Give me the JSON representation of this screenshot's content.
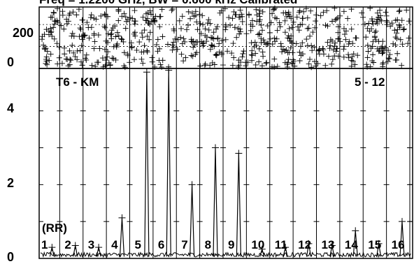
{
  "chart_data": [
    {
      "type": "scatter",
      "title": "Freq = 1.2200 GHz, BW = 0.600 kHz   Calibrated",
      "ytick_labels": [
        "200",
        "0"
      ],
      "ylim": [
        0,
        280
      ],
      "description_of_points": "dense field of '+' markers spanning the full x range and y range",
      "grid": true
    },
    {
      "type": "line",
      "panel_label": "T6 - KM",
      "range_label": "5 - 12",
      "annotation": "(RR)",
      "channel_labels": [
        "1",
        "2",
        "3",
        "4",
        "5",
        "6",
        "7",
        "8",
        "9",
        "10",
        "11",
        "12",
        "13",
        "14",
        "15",
        "16"
      ],
      "yticks": [
        "4",
        "2",
        "0"
      ],
      "ylim": [
        0,
        5.15
      ],
      "noise_floor": 0.04,
      "peaks": [
        {
          "channel": "1",
          "value": 0.3
        },
        {
          "channel": "2",
          "value": 0.35
        },
        {
          "channel": "3",
          "value": 0.3
        },
        {
          "channel": "4",
          "value": 1.1
        },
        {
          "channel": "5",
          "value": 5.05
        },
        {
          "channel": "6",
          "value": 5.1
        },
        {
          "channel": "7",
          "value": 2.0
        },
        {
          "channel": "8",
          "value": 3.0
        },
        {
          "channel": "9",
          "value": 2.85
        },
        {
          "channel": "10",
          "value": 0.25
        },
        {
          "channel": "11",
          "value": 0.3
        },
        {
          "channel": "12",
          "value": 0.4
        },
        {
          "channel": "13",
          "value": 0.35
        },
        {
          "channel": "14",
          "value": 0.75
        },
        {
          "channel": "15",
          "value": 0.4
        },
        {
          "channel": "16",
          "value": 1.0
        }
      ],
      "grid": true
    }
  ]
}
